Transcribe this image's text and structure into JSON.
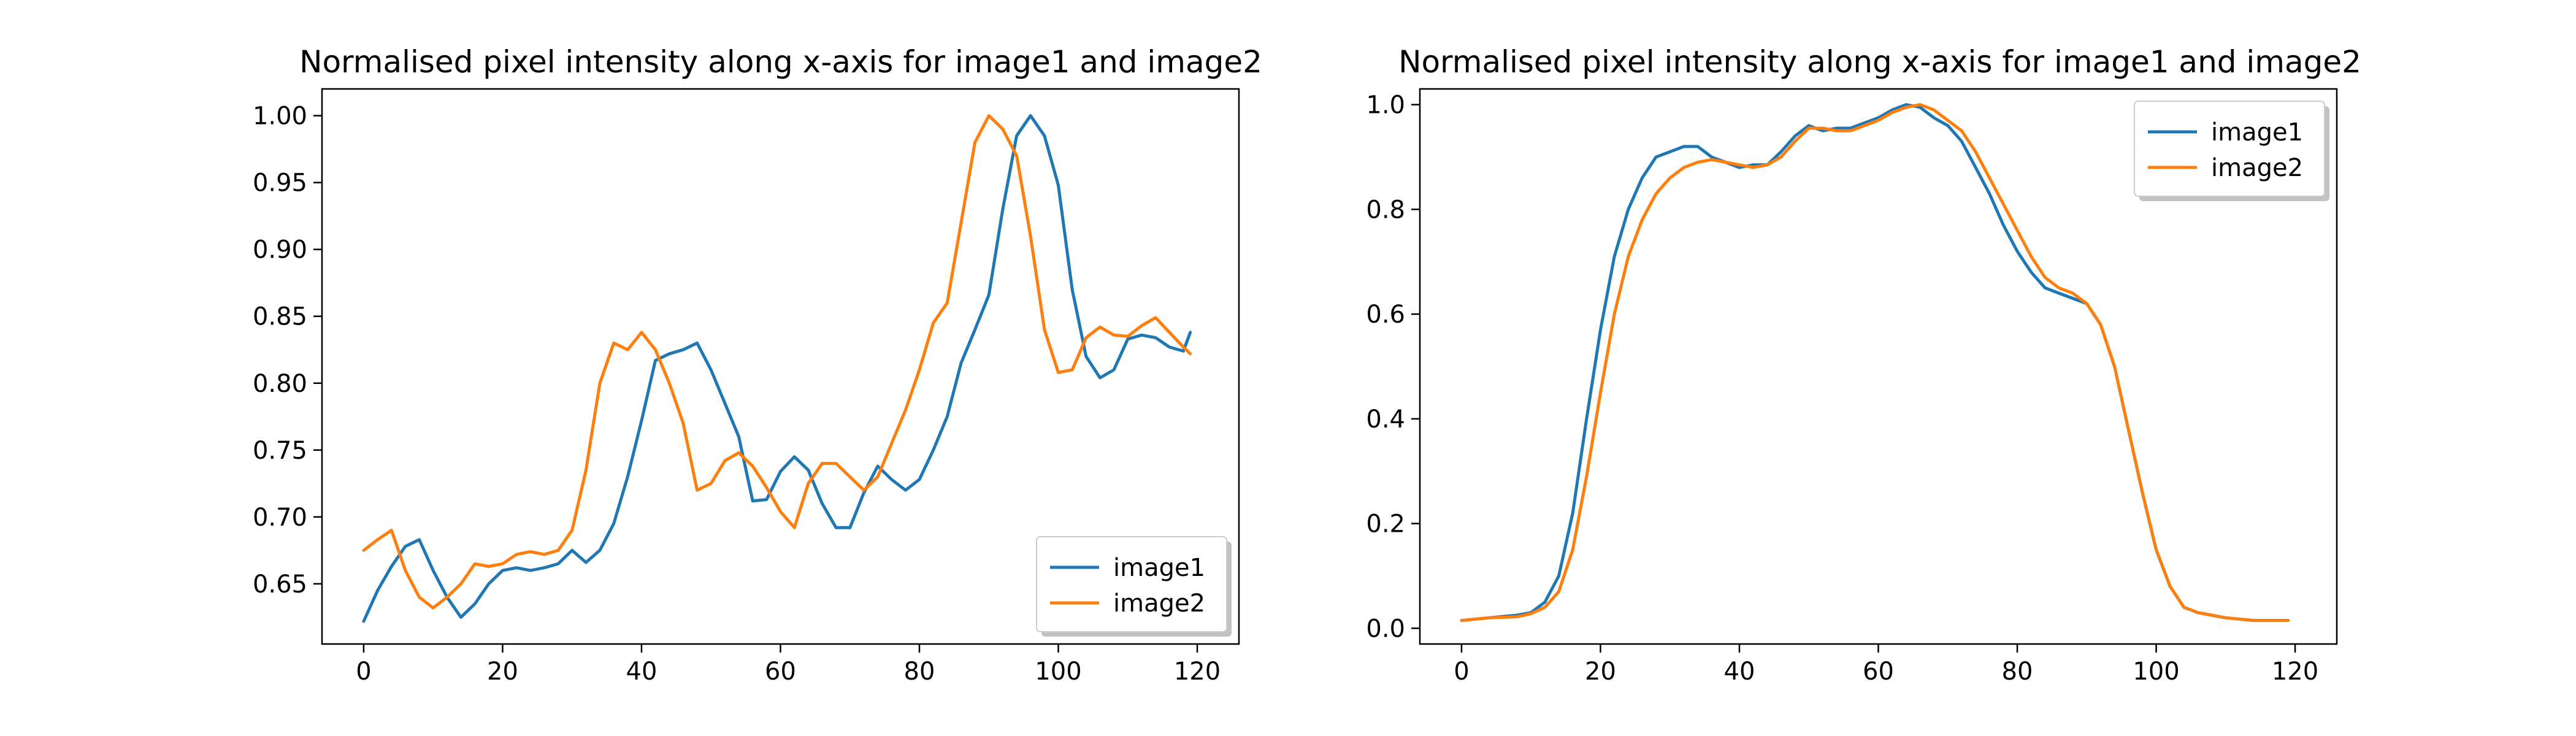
{
  "chart_data": [
    {
      "type": "line",
      "title": "Normalised pixel intensity along x-axis for image1 and image2",
      "xlabel": "",
      "ylabel": "",
      "xlim": [
        -6,
        126
      ],
      "ylim": [
        0.605,
        1.02
      ],
      "xticks": [
        0,
        20,
        40,
        60,
        80,
        100,
        120
      ],
      "yticks": [
        0.65,
        0.7,
        0.75,
        0.8,
        0.85,
        0.9,
        0.95,
        1.0
      ],
      "ytick_decimals": 2,
      "grid": false,
      "legend_position": "lower-right",
      "series": [
        {
          "name": "image1",
          "color": "#1f77b4",
          "x": [
            0,
            2,
            4,
            6,
            8,
            10,
            12,
            14,
            16,
            18,
            20,
            22,
            24,
            26,
            28,
            30,
            32,
            34,
            36,
            38,
            40,
            42,
            44,
            46,
            48,
            50,
            52,
            54,
            56,
            58,
            60,
            62,
            64,
            66,
            68,
            70,
            72,
            74,
            76,
            78,
            80,
            82,
            84,
            86,
            88,
            90,
            92,
            94,
            96,
            98,
            100,
            102,
            104,
            106,
            108,
            110,
            112,
            114,
            116,
            118,
            119
          ],
          "y": [
            0.622,
            0.645,
            0.663,
            0.678,
            0.683,
            0.66,
            0.64,
            0.625,
            0.635,
            0.65,
            0.66,
            0.662,
            0.66,
            0.662,
            0.665,
            0.675,
            0.666,
            0.675,
            0.695,
            0.73,
            0.772,
            0.817,
            0.822,
            0.825,
            0.83,
            0.81,
            0.785,
            0.76,
            0.712,
            0.713,
            0.734,
            0.745,
            0.735,
            0.71,
            0.692,
            0.692,
            0.718,
            0.738,
            0.728,
            0.72,
            0.728,
            0.75,
            0.775,
            0.815,
            0.84,
            0.866,
            0.93,
            0.985,
            1.0,
            0.985,
            0.948,
            0.87,
            0.82,
            0.804,
            0.81,
            0.833,
            0.836,
            0.834,
            0.827,
            0.824,
            0.838
          ]
        },
        {
          "name": "image2",
          "color": "#ff7f0e",
          "x": [
            0,
            2,
            4,
            6,
            8,
            10,
            12,
            14,
            16,
            18,
            20,
            22,
            24,
            26,
            28,
            30,
            32,
            34,
            36,
            38,
            40,
            42,
            44,
            46,
            48,
            50,
            52,
            54,
            56,
            58,
            60,
            62,
            64,
            66,
            68,
            70,
            72,
            74,
            76,
            78,
            80,
            82,
            84,
            86,
            88,
            90,
            92,
            94,
            96,
            98,
            100,
            102,
            104,
            106,
            108,
            110,
            112,
            114,
            116,
            118,
            119
          ],
          "y": [
            0.675,
            0.683,
            0.69,
            0.66,
            0.64,
            0.632,
            0.64,
            0.65,
            0.665,
            0.663,
            0.665,
            0.672,
            0.674,
            0.672,
            0.675,
            0.69,
            0.735,
            0.8,
            0.83,
            0.825,
            0.838,
            0.825,
            0.8,
            0.77,
            0.72,
            0.725,
            0.742,
            0.748,
            0.738,
            0.722,
            0.704,
            0.692,
            0.725,
            0.74,
            0.74,
            0.73,
            0.72,
            0.73,
            0.755,
            0.78,
            0.81,
            0.845,
            0.86,
            0.92,
            0.98,
            1.0,
            0.99,
            0.97,
            0.91,
            0.84,
            0.808,
            0.81,
            0.834,
            0.842,
            0.836,
            0.835,
            0.843,
            0.849,
            0.838,
            0.827,
            0.822
          ]
        }
      ]
    },
    {
      "type": "line",
      "title": "Normalised pixel intensity along x-axis for image1 and image2",
      "xlabel": "",
      "ylabel": "",
      "xlim": [
        -6,
        126
      ],
      "ylim": [
        -0.03,
        1.03
      ],
      "xticks": [
        0,
        20,
        40,
        60,
        80,
        100,
        120
      ],
      "yticks": [
        0.0,
        0.2,
        0.4,
        0.6,
        0.8,
        1.0
      ],
      "ytick_decimals": 1,
      "grid": false,
      "legend_position": "upper-right",
      "series": [
        {
          "name": "image1",
          "color": "#1f77b4",
          "x": [
            0,
            4,
            8,
            10,
            12,
            14,
            16,
            18,
            20,
            22,
            24,
            26,
            28,
            30,
            32,
            34,
            36,
            38,
            40,
            42,
            44,
            46,
            48,
            50,
            52,
            54,
            56,
            58,
            60,
            62,
            64,
            66,
            68,
            70,
            72,
            74,
            76,
            78,
            80,
            82,
            84,
            86,
            88,
            90,
            92,
            94,
            96,
            98,
            100,
            102,
            104,
            106,
            108,
            110,
            114,
            119
          ],
          "y": [
            0.015,
            0.02,
            0.025,
            0.03,
            0.05,
            0.1,
            0.22,
            0.4,
            0.57,
            0.71,
            0.8,
            0.86,
            0.9,
            0.91,
            0.92,
            0.92,
            0.9,
            0.89,
            0.88,
            0.885,
            0.885,
            0.91,
            0.94,
            0.96,
            0.95,
            0.955,
            0.955,
            0.965,
            0.975,
            0.99,
            1.0,
            0.995,
            0.975,
            0.96,
            0.93,
            0.88,
            0.83,
            0.77,
            0.72,
            0.68,
            0.65,
            0.64,
            0.63,
            0.62,
            0.58,
            0.5,
            0.38,
            0.26,
            0.15,
            0.08,
            0.04,
            0.03,
            0.025,
            0.02,
            0.015,
            0.015
          ]
        },
        {
          "name": "image2",
          "color": "#ff7f0e",
          "x": [
            0,
            4,
            8,
            10,
            12,
            14,
            16,
            18,
            20,
            22,
            24,
            26,
            28,
            30,
            32,
            34,
            36,
            38,
            40,
            42,
            44,
            46,
            48,
            50,
            52,
            54,
            56,
            58,
            60,
            62,
            64,
            66,
            68,
            70,
            72,
            74,
            76,
            78,
            80,
            82,
            84,
            86,
            88,
            90,
            92,
            94,
            96,
            98,
            100,
            102,
            104,
            106,
            108,
            110,
            114,
            119
          ],
          "y": [
            0.015,
            0.02,
            0.022,
            0.028,
            0.04,
            0.07,
            0.15,
            0.29,
            0.45,
            0.6,
            0.71,
            0.78,
            0.83,
            0.86,
            0.88,
            0.89,
            0.895,
            0.89,
            0.885,
            0.88,
            0.885,
            0.9,
            0.93,
            0.955,
            0.955,
            0.95,
            0.95,
            0.96,
            0.97,
            0.985,
            0.995,
            1.0,
            0.99,
            0.97,
            0.95,
            0.91,
            0.86,
            0.81,
            0.76,
            0.71,
            0.67,
            0.65,
            0.64,
            0.62,
            0.58,
            0.5,
            0.38,
            0.26,
            0.15,
            0.08,
            0.04,
            0.03,
            0.025,
            0.02,
            0.015,
            0.015
          ]
        }
      ]
    }
  ]
}
